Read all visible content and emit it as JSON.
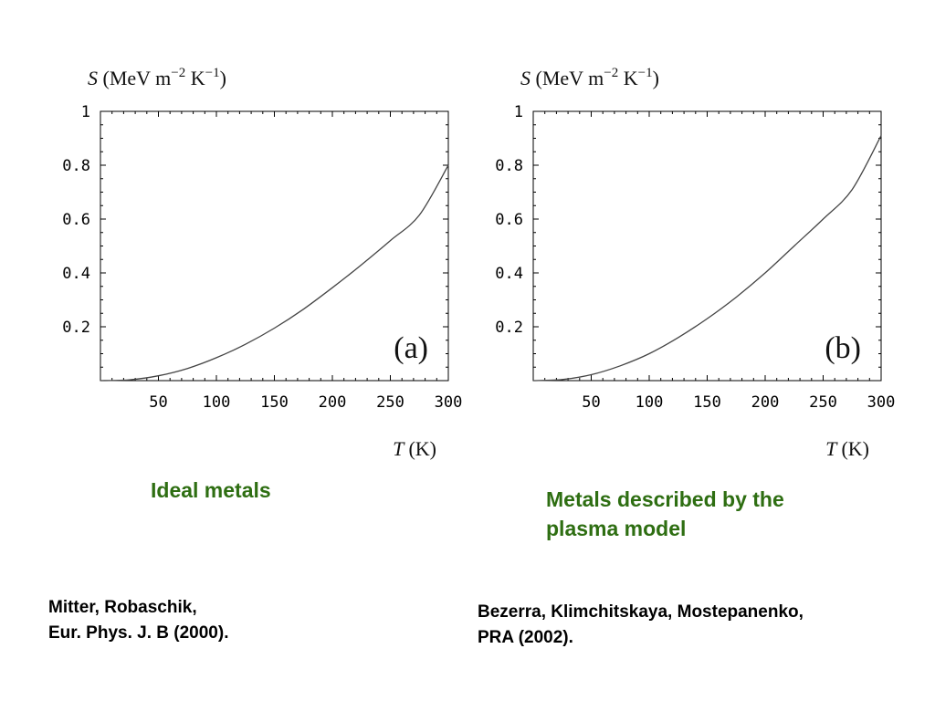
{
  "chart_data": [
    {
      "type": "line",
      "panel_label": "(a)",
      "ylabel": "S (MeV m⁻² K⁻¹)",
      "ylabel_parts": {
        "symbol": "S",
        "unit_a": "(MeV m",
        "exp_a": "−2",
        "unit_b": " K",
        "exp_b": "−1",
        "close": ")"
      },
      "xlabel": "T (K)",
      "xlabel_parts": {
        "symbol": "T",
        "unit": "(K)"
      },
      "xlim": [
        0,
        300
      ],
      "ylim": [
        0,
        1
      ],
      "x_ticks": [
        50,
        100,
        150,
        200,
        250,
        300
      ],
      "x_tick_labels": [
        "50",
        "100",
        "150",
        "200",
        "250",
        "300"
      ],
      "y_ticks": [
        0.2,
        0.4,
        0.6,
        0.8,
        1
      ],
      "y_tick_labels": [
        "0.2",
        "0.4",
        "0.6",
        "0.8",
        "1"
      ],
      "grid": false,
      "series": [
        {
          "x": [
            0,
            25,
            50,
            75,
            100,
            125,
            150,
            175,
            200,
            225,
            250,
            275,
            300
          ],
          "y": [
            0,
            0.003,
            0.018,
            0.045,
            0.085,
            0.135,
            0.195,
            0.265,
            0.345,
            0.43,
            0.52,
            0.615,
            0.8
          ]
        }
      ]
    },
    {
      "type": "line",
      "panel_label": "(b)",
      "ylabel": "S (MeV m⁻² K⁻¹)",
      "ylabel_parts": {
        "symbol": "S",
        "unit_a": "(MeV m",
        "exp_a": "−2",
        "unit_b": " K",
        "exp_b": "−1",
        "close": ")"
      },
      "xlabel": "T (K)",
      "xlabel_parts": {
        "symbol": "T",
        "unit": "(K)"
      },
      "xlim": [
        0,
        300
      ],
      "ylim": [
        0,
        1
      ],
      "x_ticks": [
        50,
        100,
        150,
        200,
        250,
        300
      ],
      "x_tick_labels": [
        "50",
        "100",
        "150",
        "200",
        "250",
        "300"
      ],
      "y_ticks": [
        0.2,
        0.4,
        0.6,
        0.8,
        1
      ],
      "y_tick_labels": [
        "0.2",
        "0.4",
        "0.6",
        "0.8",
        "1"
      ],
      "grid": false,
      "series": [
        {
          "x": [
            0,
            25,
            50,
            75,
            100,
            125,
            150,
            175,
            200,
            225,
            250,
            275,
            300
          ],
          "y": [
            0,
            0.004,
            0.022,
            0.055,
            0.1,
            0.16,
            0.23,
            0.31,
            0.4,
            0.5,
            0.6,
            0.71,
            0.91
          ]
        }
      ]
    }
  ],
  "captions": {
    "left": [
      "Ideal metals"
    ],
    "right": [
      "Metals described by the",
      "plasma model"
    ]
  },
  "references": {
    "left": [
      "Mitter, Robaschik,",
      "Eur. Phys. J. B (2000)."
    ],
    "right": [
      "Bezerra, Klimchitskaya, Mostepanenko,",
      "PRA (2002)."
    ]
  },
  "colors": {
    "caption": "#2e6e12",
    "reference": "#000000",
    "curve": "#444444",
    "frame": "#000000"
  }
}
